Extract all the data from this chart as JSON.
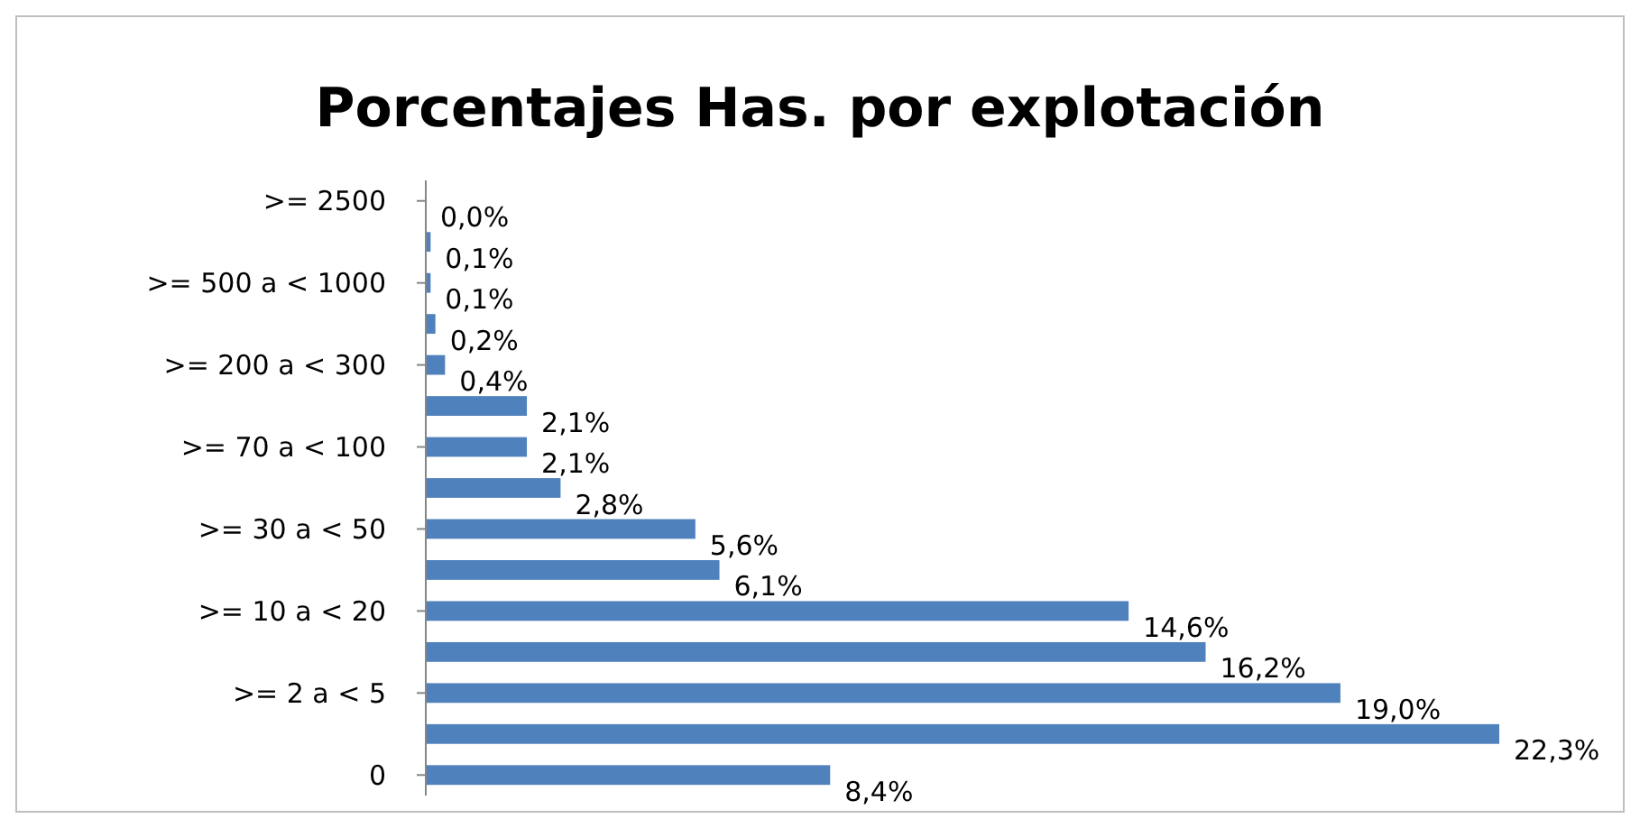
{
  "chart_data": {
    "type": "bar",
    "orientation": "horizontal",
    "title": "Porcentajes Has. por explotación",
    "categories": [
      ">= 2500",
      null,
      ">= 500 a < 1000",
      null,
      ">= 200 a < 300",
      null,
      ">= 70 a < 100",
      null,
      ">= 30 a < 50",
      null,
      ">= 10 a < 20",
      null,
      ">= 2 a < 5",
      null,
      "0"
    ],
    "values": [
      0.0,
      0.1,
      0.1,
      0.2,
      0.4,
      2.1,
      2.1,
      2.8,
      5.6,
      6.1,
      14.6,
      16.2,
      19.0,
      22.3,
      8.4
    ],
    "value_labels": [
      "0,0%",
      "0,1%",
      "0,1%",
      "0,2%",
      "0,4%",
      "2,1%",
      "2,1%",
      "2,8%",
      "5,6%",
      "6,1%",
      "14,6%",
      "16,2%",
      "19,0%",
      "22,3%",
      "8,4%"
    ],
    "color": "#4f81bd"
  }
}
